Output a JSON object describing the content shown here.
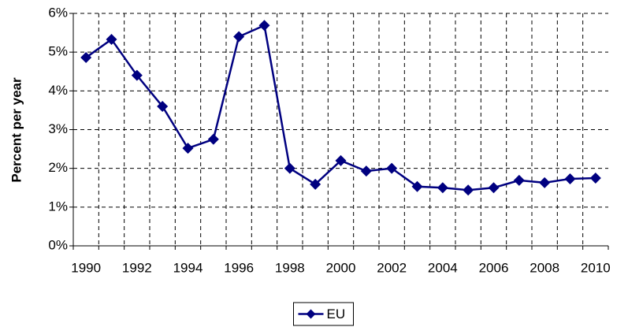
{
  "chart_data": {
    "type": "line",
    "y_label": "Percent per year",
    "categories": [
      "1990",
      null,
      "1992",
      null,
      "1994",
      null,
      "1996",
      null,
      "1998",
      null,
      "2000",
      null,
      "2002",
      null,
      "2004",
      null,
      "2006",
      null,
      "2008",
      null,
      "2010"
    ],
    "series": [
      {
        "name": "EU",
        "color": "#000080",
        "values": [
          4.86,
          5.33,
          4.4,
          3.6,
          2.52,
          2.75,
          5.4,
          5.69,
          2.0,
          1.59,
          2.2,
          1.93,
          2.0,
          1.53,
          1.5,
          1.44,
          1.5,
          1.69,
          1.63,
          1.73,
          1.75
        ]
      }
    ],
    "ylim": [
      0,
      6
    ],
    "yticks": [
      {
        "value": 0,
        "label": "0%"
      },
      {
        "value": 1,
        "label": "1%"
      },
      {
        "value": 2,
        "label": "2%"
      },
      {
        "value": 3,
        "label": "3%"
      },
      {
        "value": 4,
        "label": "4%"
      },
      {
        "value": 5,
        "label": "5%"
      },
      {
        "value": 6,
        "label": "6%"
      }
    ],
    "grid": true,
    "legend": "bottom"
  }
}
